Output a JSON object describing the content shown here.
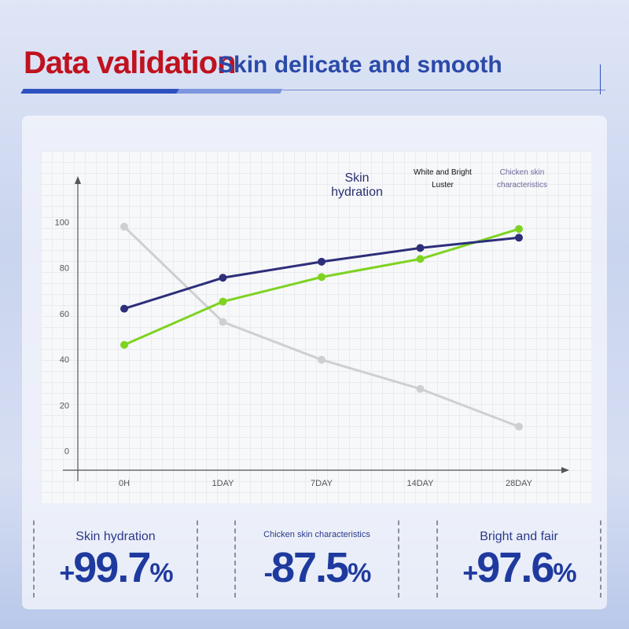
{
  "header": {
    "title": "Data validation",
    "subtitle": "Skin delicate and smooth"
  },
  "chart_data": {
    "type": "line",
    "categories": [
      "0H",
      "1DAY",
      "7DAY",
      "14DAY",
      "28DAY"
    ],
    "series": [
      {
        "name": "Skin hydration",
        "color": "#2d2f7a",
        "values": [
          62.5,
          76,
          83,
          89,
          93.5
        ]
      },
      {
        "name": "White and Bright Luster",
        "color": "#7ed321",
        "values": [
          46.7,
          65.6,
          76.3,
          84.2,
          97.3
        ]
      },
      {
        "name": "Chicken skin characteristics",
        "color": "#cfcfd3",
        "values": [
          98.3,
          56.7,
          40.2,
          27.5,
          11
        ]
      }
    ],
    "ylim": [
      -8,
      119
    ],
    "yticks": [
      0,
      20,
      40,
      60,
      80,
      100
    ],
    "grid": false
  },
  "stats": [
    {
      "label": "Skin hydration",
      "sign": "+",
      "number": "99.7",
      "unit": "%"
    },
    {
      "label": "Chicken skin characteristics",
      "sign": "-",
      "number": "87.5",
      "unit": "%"
    },
    {
      "label": "Bright and fair",
      "sign": "+",
      "number": "97.6",
      "unit": "%"
    }
  ]
}
